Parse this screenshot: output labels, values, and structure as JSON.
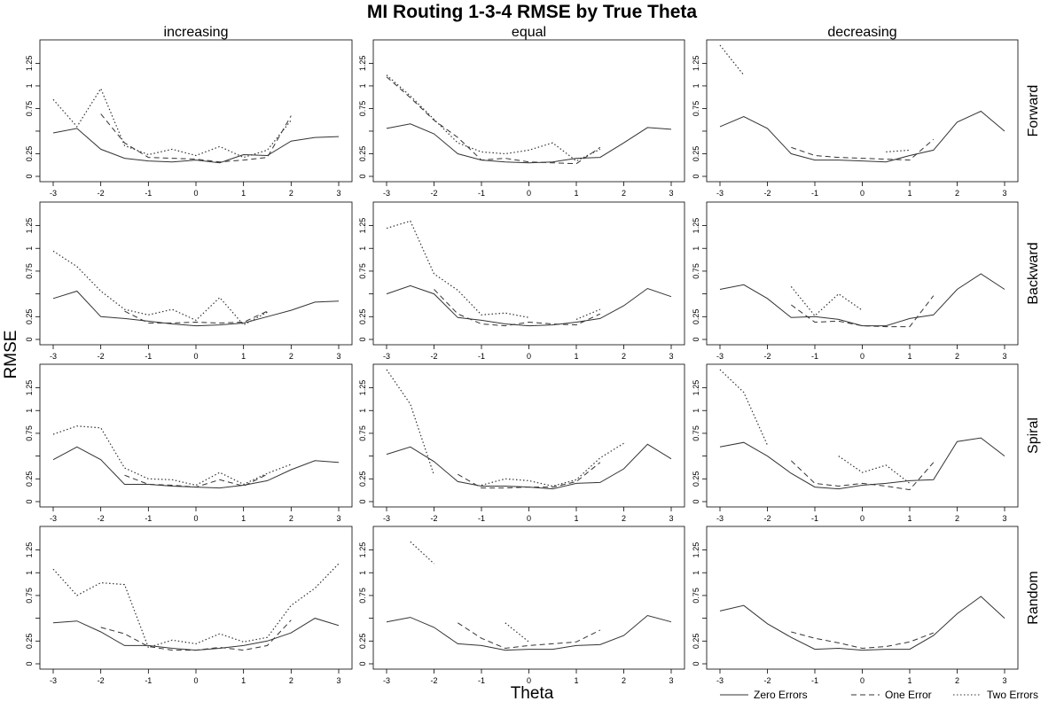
{
  "title": "MI Routing 1-3-4 RMSE by True Theta",
  "xlabel": "Theta",
  "ylabel": "RMSE",
  "chart_data": {
    "type": "line",
    "layout": "4x3 panel grid",
    "columns": [
      "increasing",
      "equal",
      "decreasing"
    ],
    "rows": [
      "Forward",
      "Backward",
      "Spiral",
      "Random"
    ],
    "x": [
      -3,
      -2.5,
      -2,
      -1.5,
      -1,
      -0.5,
      0,
      0.5,
      1,
      1.5,
      2,
      2.5,
      3
    ],
    "xticks": [
      -3,
      -2,
      -1,
      0,
      1,
      2,
      3
    ],
    "yticks": [
      0,
      0.25,
      0.5,
      0.75,
      1,
      1.25
    ],
    "ytick_labels": [
      "0",
      "0.25",
      "",
      "0.75",
      "1",
      "1.25"
    ],
    "ylim": [
      0,
      1.45
    ],
    "grid": false,
    "legend": {
      "placement": "bottom-right",
      "entries": [
        {
          "name": "Zero Errors",
          "style": "solid"
        },
        {
          "name": "One Error",
          "style": "dashed"
        },
        {
          "name": "Two Errors",
          "style": "dotted"
        }
      ]
    },
    "panels": [
      {
        "row": "Forward",
        "column": "increasing",
        "series": [
          {
            "name": "Zero Errors",
            "values": [
              0.48,
              0.53,
              0.3,
              0.2,
              0.17,
              0.16,
              0.18,
              0.15,
              0.24,
              0.23,
              0.39,
              0.43,
              0.44
            ]
          },
          {
            "name": "One Error",
            "values": [
              null,
              null,
              0.69,
              0.37,
              0.21,
              0.2,
              0.19,
              0.16,
              0.18,
              0.21,
              0.67,
              null,
              null
            ]
          },
          {
            "name": "Two Errors",
            "values": [
              0.85,
              0.55,
              0.97,
              0.34,
              0.24,
              0.3,
              0.23,
              0.33,
              0.21,
              0.29,
              0.62,
              null,
              null
            ]
          }
        ]
      },
      {
        "row": "Forward",
        "column": "equal",
        "series": [
          {
            "name": "Zero Errors",
            "values": [
              0.53,
              0.58,
              0.47,
              0.25,
              0.18,
              0.16,
              0.15,
              0.16,
              0.2,
              0.21,
              0.37,
              0.54,
              0.52
            ]
          },
          {
            "name": "One Error",
            "values": [
              1.1,
              0.87,
              0.62,
              0.43,
              0.18,
              0.2,
              0.16,
              0.15,
              0.14,
              0.32,
              null,
              null,
              null
            ]
          },
          {
            "name": "Two Errors",
            "values": [
              1.12,
              0.89,
              0.63,
              0.37,
              0.27,
              0.25,
              0.29,
              0.37,
              0.17,
              0.3,
              null,
              null,
              null
            ]
          }
        ]
      },
      {
        "row": "Forward",
        "column": "decreasing",
        "series": [
          {
            "name": "Zero Errors",
            "values": [
              0.55,
              0.66,
              0.53,
              0.25,
              0.18,
              0.18,
              0.17,
              0.16,
              0.23,
              0.29,
              0.6,
              0.72,
              0.5
            ]
          },
          {
            "name": "One Error",
            "values": [
              null,
              null,
              null,
              0.32,
              0.23,
              0.21,
              0.2,
              0.19,
              0.18,
              0.41,
              null,
              null,
              null
            ]
          },
          {
            "name": "Two Errors",
            "values": [
              1.45,
              1.12,
              null,
              null,
              null,
              null,
              null,
              0.27,
              0.29,
              null,
              null,
              null,
              null
            ]
          }
        ]
      },
      {
        "row": "Backward",
        "column": "increasing",
        "series": [
          {
            "name": "Zero Errors",
            "values": [
              0.45,
              0.53,
              0.25,
              0.23,
              0.2,
              0.17,
              0.15,
              0.16,
              0.18,
              0.25,
              0.32,
              0.41,
              0.42
            ]
          },
          {
            "name": "One Error",
            "values": [
              null,
              null,
              null,
              0.31,
              0.18,
              0.18,
              0.19,
              0.18,
              0.19,
              0.31,
              null,
              null,
              null
            ]
          },
          {
            "name": "Two Errors",
            "values": [
              0.97,
              0.8,
              0.53,
              0.33,
              0.27,
              0.33,
              0.21,
              0.46,
              0.16,
              0.3,
              null,
              null,
              null
            ]
          }
        ]
      },
      {
        "row": "Backward",
        "column": "equal",
        "series": [
          {
            "name": "Zero Errors",
            "values": [
              0.5,
              0.59,
              0.5,
              0.24,
              0.21,
              0.17,
              0.15,
              0.16,
              0.19,
              0.23,
              0.37,
              0.56,
              0.47
            ]
          },
          {
            "name": "One Error",
            "values": [
              null,
              null,
              0.55,
              0.28,
              0.17,
              0.15,
              0.19,
              0.17,
              0.16,
              0.28,
              null,
              null,
              null
            ]
          },
          {
            "name": "Two Errors",
            "values": [
              1.22,
              1.3,
              0.72,
              0.54,
              0.27,
              0.29,
              0.24,
              null,
              0.22,
              0.33,
              null,
              null,
              null
            ]
          }
        ]
      },
      {
        "row": "Backward",
        "column": "decreasing",
        "series": [
          {
            "name": "Zero Errors",
            "values": [
              0.55,
              0.6,
              0.45,
              0.24,
              0.25,
              0.22,
              0.15,
              0.15,
              0.23,
              0.27,
              0.55,
              0.72,
              0.55
            ]
          },
          {
            "name": "One Error",
            "values": [
              null,
              null,
              null,
              0.38,
              0.19,
              0.2,
              0.15,
              0.14,
              0.14,
              0.48,
              null,
              null,
              null
            ]
          },
          {
            "name": "Two Errors",
            "values": [
              null,
              null,
              null,
              0.58,
              0.26,
              0.5,
              0.32,
              null,
              null,
              null,
              null,
              null,
              null
            ]
          }
        ]
      },
      {
        "row": "Spiral",
        "column": "increasing",
        "series": [
          {
            "name": "Zero Errors",
            "values": [
              0.46,
              0.6,
              0.46,
              0.19,
              0.19,
              0.17,
              0.16,
              0.15,
              0.18,
              0.23,
              0.35,
              0.45,
              0.43
            ]
          },
          {
            "name": "One Error",
            "values": [
              null,
              null,
              null,
              0.29,
              0.19,
              0.18,
              0.16,
              0.24,
              0.17,
              0.3,
              null,
              null,
              null
            ]
          },
          {
            "name": "Two Errors",
            "values": [
              0.74,
              0.83,
              0.81,
              0.37,
              0.25,
              0.24,
              0.18,
              0.32,
              0.19,
              0.31,
              0.41,
              null,
              null
            ]
          }
        ]
      },
      {
        "row": "Spiral",
        "column": "equal",
        "series": [
          {
            "name": "Zero Errors",
            "values": [
              0.52,
              0.6,
              0.44,
              0.22,
              0.17,
              0.17,
              0.16,
              0.14,
              0.2,
              0.21,
              0.36,
              0.63,
              0.47
            ]
          },
          {
            "name": "One Error",
            "values": [
              null,
              null,
              null,
              0.3,
              0.15,
              0.15,
              0.16,
              0.16,
              0.22,
              0.43,
              null,
              null,
              null
            ]
          },
          {
            "name": "Two Errors",
            "values": [
              1.45,
              1.07,
              0.29,
              null,
              0.18,
              0.25,
              0.23,
              0.17,
              0.24,
              0.48,
              0.64,
              null,
              null
            ]
          }
        ]
      },
      {
        "row": "Spiral",
        "column": "decreasing",
        "series": [
          {
            "name": "Zero Errors",
            "values": [
              0.6,
              0.65,
              0.5,
              0.31,
              0.16,
              0.14,
              0.18,
              0.2,
              0.23,
              0.24,
              0.66,
              0.7,
              0.5
            ]
          },
          {
            "name": "One Error",
            "values": [
              null,
              null,
              null,
              0.45,
              0.2,
              0.17,
              0.2,
              0.17,
              0.13,
              0.43,
              null,
              null,
              null
            ]
          },
          {
            "name": "Two Errors",
            "values": [
              1.45,
              1.2,
              0.62,
              null,
              null,
              0.5,
              0.32,
              0.4,
              0.2,
              null,
              null,
              null,
              null
            ]
          }
        ]
      },
      {
        "row": "Random",
        "column": "increasing",
        "series": [
          {
            "name": "Zero Errors",
            "values": [
              0.45,
              0.47,
              0.35,
              0.2,
              0.2,
              0.17,
              0.15,
              0.17,
              0.2,
              0.25,
              0.34,
              0.5,
              0.42
            ]
          },
          {
            "name": "One Error",
            "values": [
              null,
              null,
              0.4,
              0.33,
              0.19,
              0.15,
              0.15,
              0.18,
              0.15,
              0.2,
              0.48,
              null,
              null
            ]
          },
          {
            "name": "Two Errors",
            "values": [
              1.04,
              0.75,
              0.89,
              0.87,
              0.18,
              0.26,
              0.22,
              0.33,
              0.24,
              0.29,
              0.64,
              0.83,
              1.1
            ]
          }
        ]
      },
      {
        "row": "Random",
        "column": "equal",
        "series": [
          {
            "name": "Zero Errors",
            "values": [
              0.46,
              0.51,
              0.4,
              0.22,
              0.2,
              0.15,
              0.16,
              0.16,
              0.2,
              0.21,
              0.31,
              0.53,
              0.46
            ]
          },
          {
            "name": "One Error",
            "values": [
              null,
              null,
              null,
              0.45,
              0.28,
              0.17,
              0.2,
              0.22,
              0.24,
              0.37,
              null,
              null,
              null
            ]
          },
          {
            "name": "Two Errors",
            "values": [
              null,
              1.34,
              1.1,
              null,
              null,
              0.45,
              0.24,
              null,
              null,
              null,
              null,
              null,
              null
            ]
          }
        ]
      },
      {
        "row": "Random",
        "column": "decreasing",
        "series": [
          {
            "name": "Zero Errors",
            "values": [
              0.58,
              0.64,
              0.44,
              0.29,
              0.16,
              0.17,
              0.15,
              0.16,
              0.16,
              0.31,
              0.55,
              0.74,
              0.5
            ]
          },
          {
            "name": "One Error",
            "values": [
              null,
              null,
              null,
              0.35,
              0.28,
              0.23,
              0.17,
              0.19,
              0.24,
              0.34,
              null,
              null,
              null
            ]
          },
          {
            "name": "Two Errors",
            "values": [
              null,
              null,
              null,
              null,
              null,
              null,
              null,
              null,
              null,
              null,
              null,
              null,
              null
            ]
          }
        ]
      }
    ]
  }
}
